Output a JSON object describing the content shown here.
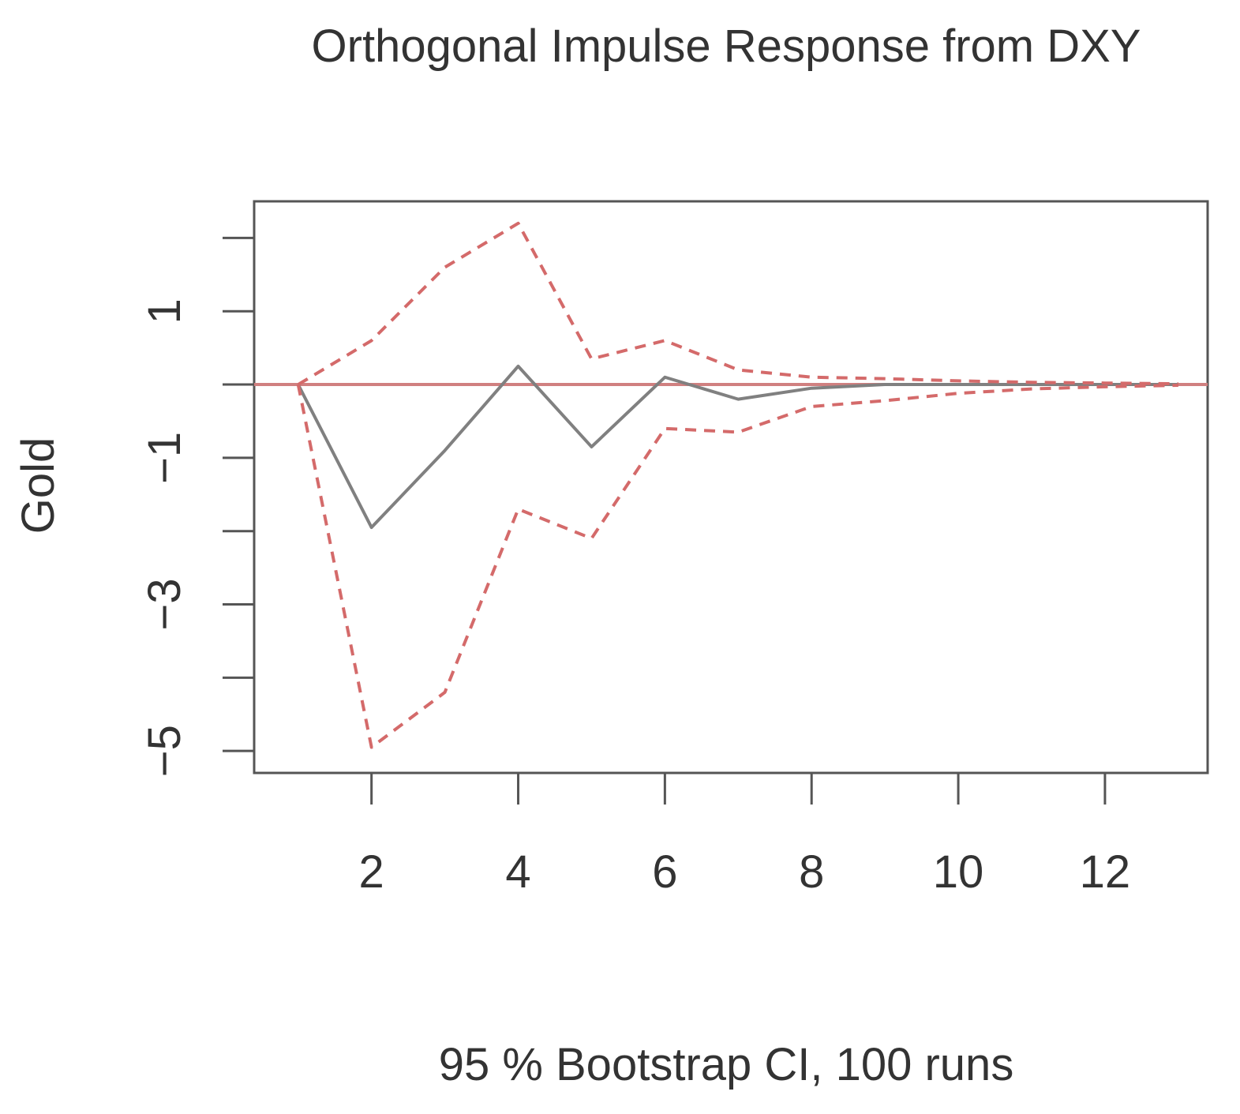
{
  "chart_data": {
    "type": "line",
    "title": "Orthogonal Impulse Response from DXY",
    "xlabel": "95 % Bootstrap CI,  100 runs",
    "ylabel": "Gold",
    "xlim": [
      0.4,
      13.4
    ],
    "ylim": [
      -5.3,
      2.5
    ],
    "x_ticks": [
      2,
      4,
      6,
      8,
      10,
      12
    ],
    "x_tick_labels": [
      "2",
      "4",
      "6",
      "8",
      "10",
      "12"
    ],
    "y_ticks": [
      -5,
      -4,
      -3,
      -2,
      -1,
      0,
      1,
      2
    ],
    "y_tick_labels": [
      "−5",
      "",
      "−3",
      "",
      "−1",
      "",
      "1",
      ""
    ],
    "grid": false,
    "legend": false,
    "reference_line": {
      "y": 0,
      "color": "#d08080"
    },
    "series": [
      {
        "role": "response",
        "style": "solid",
        "color": "#808080",
        "x": [
          1,
          2,
          3,
          4,
          5,
          6,
          7,
          8,
          9,
          10,
          11,
          12,
          13
        ],
        "y": [
          0,
          -1.95,
          -0.9,
          0.25,
          -0.85,
          0.1,
          -0.2,
          -0.05,
          0,
          0,
          0,
          0,
          0
        ]
      },
      {
        "role": "upper",
        "style": "dashed",
        "color": "#d46a6a",
        "x": [
          1,
          2,
          3,
          4,
          5,
          6,
          7,
          8,
          9,
          10,
          11,
          12,
          13
        ],
        "y": [
          0,
          0.6,
          1.6,
          2.2,
          0.35,
          0.6,
          0.2,
          0.1,
          0.08,
          0.05,
          0.03,
          0.02,
          0.01
        ]
      },
      {
        "role": "lower",
        "style": "dashed",
        "color": "#d46a6a",
        "x": [
          1,
          2,
          3,
          4,
          5,
          6,
          7,
          8,
          9,
          10,
          11,
          12,
          13
        ],
        "y": [
          0,
          -4.95,
          -4.2,
          -1.7,
          -2.1,
          -0.6,
          -0.65,
          -0.3,
          -0.22,
          -0.12,
          -0.06,
          -0.03,
          -0.01
        ]
      }
    ]
  }
}
